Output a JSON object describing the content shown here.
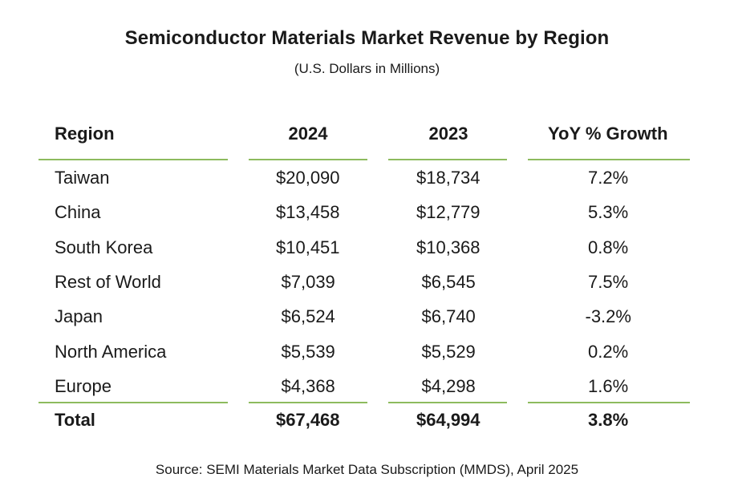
{
  "title": "Semiconductor Materials Market Revenue by Region",
  "subtitle": "(U.S. Dollars in Millions)",
  "source": "Source: SEMI Materials Market Data Subscription (MMDS), April 2025",
  "colors": {
    "rule": "#8dbb5e",
    "text": "#1a1a1a",
    "background": "#ffffff"
  },
  "chart_data": {
    "type": "table",
    "title": "Semiconductor Materials Market Revenue by Region",
    "subtitle": "(U.S. Dollars in Millions)",
    "columns": [
      "Region",
      "2024",
      "2023",
      "YoY % Growth"
    ],
    "rows": [
      [
        "Taiwan",
        "$20,090",
        "$18,734",
        "7.2%"
      ],
      [
        "China",
        "$13,458",
        "$12,779",
        "5.3%"
      ],
      [
        "South Korea",
        "$10,451",
        "$10,368",
        "0.8%"
      ],
      [
        "Rest of World",
        "$7,039",
        "$6,545",
        "7.5%"
      ],
      [
        "Japan",
        "$6,524",
        "$6,740",
        "-3.2%"
      ],
      [
        "North America",
        "$5,539",
        "$5,529",
        "0.2%"
      ],
      [
        "Europe",
        "$4,368",
        "$4,298",
        "1.6%"
      ]
    ],
    "total": [
      "Total",
      "$67,468",
      "$64,994",
      "3.8%"
    ]
  }
}
